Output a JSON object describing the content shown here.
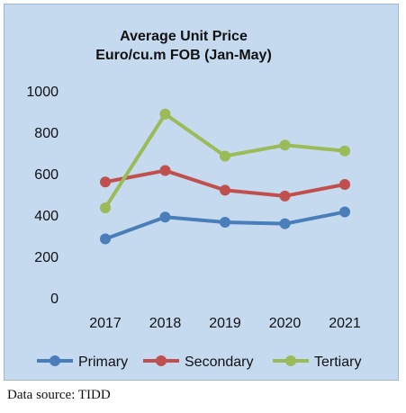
{
  "chart_data": {
    "type": "line",
    "title": "Average Unit Price",
    "subtitle": "Euro/cu.m FOB (Jan-May)",
    "categories": [
      "2017",
      "2018",
      "2019",
      "2020",
      "2021"
    ],
    "series": [
      {
        "name": "Primary",
        "color": "#4a7ebb",
        "values": [
          285,
          390,
          365,
          358,
          415
        ]
      },
      {
        "name": "Secondary",
        "color": "#c0504d",
        "values": [
          560,
          615,
          520,
          492,
          548
        ]
      },
      {
        "name": "Tertiary",
        "color": "#9bbb59",
        "values": [
          435,
          888,
          685,
          738,
          710
        ]
      }
    ],
    "ylim": [
      0,
      1000
    ],
    "yticks": [
      "0",
      "200",
      "400",
      "600",
      "800",
      "1000"
    ],
    "grid": false,
    "legend": "bottom",
    "background": "#c5d9ef"
  },
  "source_note": "Data source: TIDD"
}
